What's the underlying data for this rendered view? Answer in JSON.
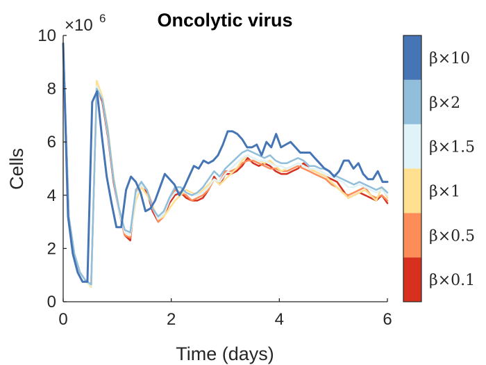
{
  "chart_data": {
    "type": "line",
    "title": "Oncolytic virus",
    "xlabel": "Time (days)",
    "ylabel": "Cells",
    "xlim": [
      0,
      6
    ],
    "ylim": [
      0,
      10
    ],
    "xticks": [
      "0",
      "2",
      "4",
      "6"
    ],
    "yticks": [
      "0",
      "2",
      "4",
      "6",
      "8",
      "10"
    ],
    "y_exponent_prefix": "×10",
    "y_exponent_power": "6",
    "grid": false,
    "legend": "colorbar-right",
    "colorbar_labels": [
      "β×0.1",
      "β×0.5",
      "β×1",
      "β×1.5",
      "β×2",
      "β×10"
    ],
    "colors": [
      "#d7301f",
      "#fc8d59",
      "#fee090",
      "#e0f3f8",
      "#91bfdb",
      "#4575b4"
    ],
    "series": [
      {
        "values": [
          9.7,
          3.2,
          1.8,
          1.1,
          0.8,
          0.6,
          8.1,
          7.5,
          6.2,
          4.5,
          3.4,
          2.5,
          2.3,
          4.2,
          4.5,
          4.1,
          3.4,
          3.0,
          3.2,
          3.7,
          4.0,
          4.1,
          3.9,
          3.8,
          3.8,
          3.9,
          4.2,
          4.7,
          4.4,
          4.8,
          4.8,
          4.9,
          5.1,
          5.4,
          5.2,
          5.1,
          5.2,
          5.1,
          4.9,
          4.8,
          4.8,
          4.9,
          5.0,
          5.2,
          5.0,
          4.9,
          4.8,
          4.7,
          4.6,
          4.5,
          4.2,
          3.9,
          4.0,
          4.1,
          4.0,
          3.9,
          3.8,
          4.0,
          3.7
        ]
      },
      {
        "values": [
          9.7,
          3.2,
          1.8,
          1.1,
          0.8,
          0.6,
          8.2,
          7.6,
          6.4,
          4.6,
          3.4,
          2.5,
          2.4,
          4.1,
          4.4,
          4.2,
          3.6,
          3.0,
          3.2,
          3.8,
          4.2,
          4.1,
          4.0,
          3.8,
          3.9,
          4.0,
          4.2,
          4.6,
          4.5,
          4.9,
          4.9,
          5.0,
          5.2,
          5.3,
          5.3,
          5.2,
          5.1,
          5.0,
          5.0,
          4.9,
          4.9,
          5.0,
          5.1,
          5.0,
          4.9,
          4.8,
          4.7,
          4.6,
          4.4,
          4.3,
          4.1,
          4.0,
          4.1,
          4.2,
          4.3,
          4.0,
          3.9,
          4.0,
          3.8
        ]
      },
      {
        "values": [
          9.7,
          3.2,
          1.8,
          1.1,
          0.8,
          0.55,
          8.3,
          7.7,
          6.5,
          4.7,
          3.5,
          2.6,
          2.5,
          3.8,
          4.3,
          4.0,
          3.6,
          3.1,
          3.2,
          3.5,
          3.8,
          4.0,
          4.2,
          4.1,
          4.0,
          4.2,
          4.4,
          4.6,
          4.4,
          4.6,
          4.8,
          5.0,
          5.3,
          5.5,
          5.4,
          5.3,
          5.2,
          5.3,
          5.1,
          4.9,
          5.0,
          5.1,
          5.2,
          5.1,
          5.0,
          4.9,
          4.8,
          4.7,
          4.5,
          4.3,
          4.1,
          3.9,
          4.0,
          4.1,
          4.2,
          4.0,
          3.8,
          4.3,
          3.9
        ]
      },
      {
        "values": [
          9.7,
          3.2,
          1.8,
          1.1,
          0.8,
          0.6,
          8.1,
          7.6,
          6.3,
          4.6,
          3.4,
          2.6,
          2.5,
          4.0,
          4.4,
          4.2,
          3.5,
          3.1,
          3.3,
          3.8,
          4.1,
          4.2,
          4.1,
          4.0,
          4.0,
          4.1,
          4.3,
          4.6,
          4.5,
          4.8,
          5.0,
          5.2,
          5.4,
          5.5,
          5.4,
          5.3,
          5.3,
          5.2,
          5.1,
          5.1,
          5.0,
          5.1,
          5.2,
          5.1,
          5.0,
          5.0,
          4.9,
          4.8,
          4.7,
          4.6,
          4.5,
          4.3,
          4.3,
          4.4,
          4.3,
          4.2,
          4.1,
          4.2,
          4.0
        ]
      },
      {
        "values": [
          9.7,
          3.2,
          1.8,
          1.1,
          0.8,
          0.65,
          8.0,
          7.6,
          6.4,
          4.6,
          3.5,
          2.7,
          2.6,
          4.2,
          4.5,
          4.2,
          3.5,
          3.2,
          3.4,
          3.9,
          4.3,
          4.3,
          4.1,
          4.0,
          4.1,
          4.3,
          4.6,
          4.9,
          4.7,
          5.0,
          5.2,
          5.4,
          5.6,
          5.7,
          5.6,
          5.5,
          5.4,
          5.5,
          5.3,
          5.2,
          5.2,
          5.3,
          5.4,
          5.3,
          5.1,
          5.1,
          5.0,
          5.0,
          4.8,
          4.7,
          4.6,
          4.5,
          4.4,
          4.5,
          4.4,
          4.3,
          4.2,
          4.3,
          4.1
        ]
      },
      {
        "values": [
          9.7,
          3.2,
          1.8,
          1.1,
          0.75,
          0.75,
          7.5,
          7.9,
          6.2,
          4.7,
          3.7,
          2.8,
          2.8,
          4.2,
          4.7,
          4.5,
          4.1,
          3.4,
          3.5,
          3.8,
          4.3,
          4.8,
          4.6,
          4.4,
          4.0,
          4.3,
          4.7,
          5.1,
          5.0,
          5.3,
          5.2,
          5.3,
          5.5,
          5.9,
          6.4,
          6.4,
          6.3,
          6.1,
          5.8,
          5.8,
          5.9,
          5.5,
          6.0,
          5.8,
          6.3,
          5.8,
          5.9,
          6.0,
          5.8,
          5.6,
          5.6,
          5.6,
          5.4,
          5.2,
          5.0,
          4.9,
          4.7,
          4.9,
          5.3,
          5.3,
          5.0,
          5.2,
          4.8,
          4.6,
          4.6,
          4.9,
          4.5,
          4.5
        ]
      }
    ]
  }
}
